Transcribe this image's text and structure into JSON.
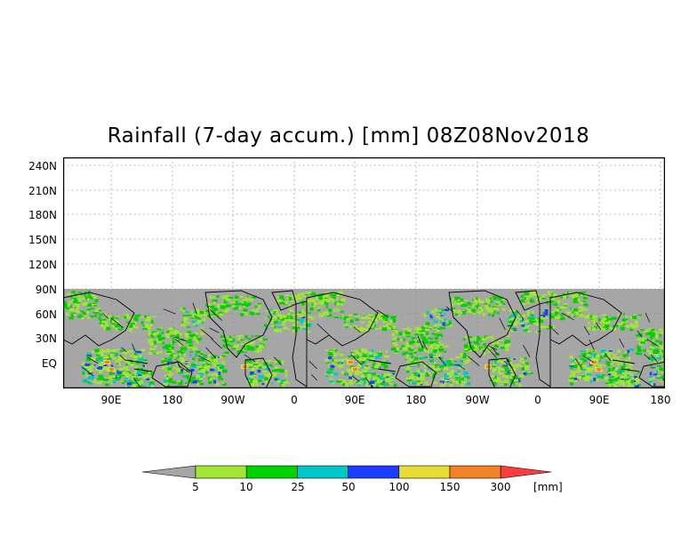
{
  "title": "Rainfall (7-day accum.) [mm] 08Z08Nov2018",
  "y_axis": {
    "tick_labels": [
      "240N",
      "210N",
      "180N",
      "150N",
      "120N",
      "90N",
      "60N",
      "30N",
      "EQ"
    ]
  },
  "x_axis": {
    "tick_labels": [
      "90E",
      "180",
      "90W",
      "0",
      "90E",
      "180",
      "90W",
      "0",
      "90E",
      "180"
    ]
  },
  "map": {
    "data_region": "90N to 30S, repeated longitude span",
    "no_data_color": "#a6a6a6",
    "coastline_color": "#000000",
    "grid": "dotted"
  },
  "legend": {
    "unit": "[mm]",
    "thresholds": [
      "5",
      "10",
      "25",
      "50",
      "100",
      "150",
      "300"
    ],
    "colors": [
      "#a6a6a6",
      "#a0e632",
      "#00d200",
      "#00c8c8",
      "#1e3cff",
      "#e6dc32",
      "#f08228",
      "#fa3c3c"
    ]
  }
}
